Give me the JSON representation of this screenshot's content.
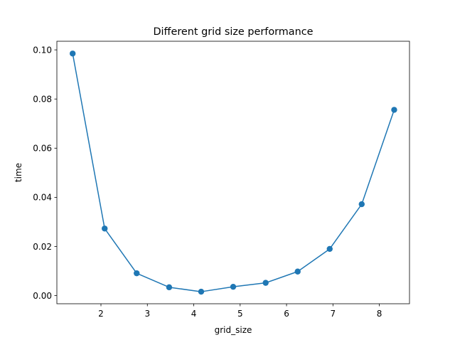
{
  "chart_data": {
    "type": "line",
    "title": "Different grid size performance",
    "xlabel": "grid_size",
    "ylabel": "time",
    "xlim": [
      1.05,
      8.65
    ],
    "ylim": [
      -0.0033,
      0.1035
    ],
    "xticks": [
      2,
      3,
      4,
      5,
      6,
      7,
      8
    ],
    "yticks": [
      0.0,
      0.02,
      0.04,
      0.06,
      0.08,
      0.1
    ],
    "ytick_labels": [
      "0.00",
      "0.02",
      "0.04",
      "0.06",
      "0.08",
      "0.10"
    ],
    "grid": false,
    "series": [
      {
        "color": "#1f77b4",
        "marker": "circle",
        "x": [
          1.39,
          2.08,
          2.77,
          3.47,
          4.16,
          4.85,
          5.55,
          6.24,
          6.93,
          7.62,
          8.32
        ],
        "y": [
          0.0985,
          0.0273,
          0.0091,
          0.0034,
          0.0016,
          0.0036,
          0.0052,
          0.0098,
          0.019,
          0.0372,
          0.0756
        ]
      }
    ]
  }
}
